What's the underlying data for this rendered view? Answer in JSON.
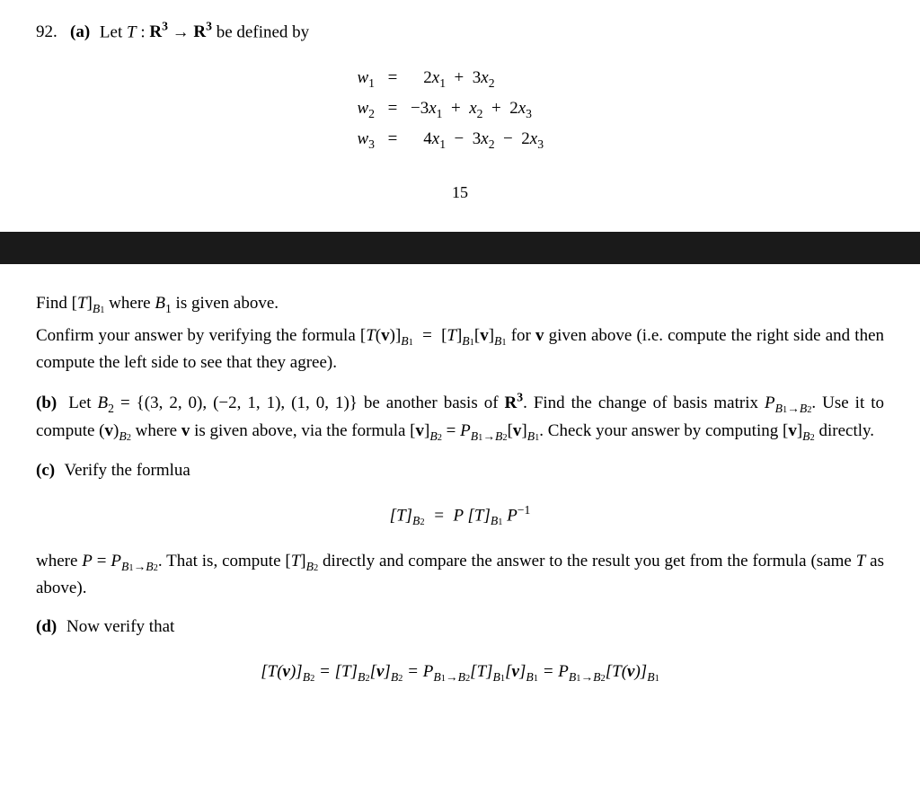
{
  "problem": {
    "number": "92.",
    "part_a_label": "(a)",
    "intro_text": "be defined by",
    "let_text": "Let",
    "T_notation": "T",
    "R3_notation": "R",
    "sup3": "3",
    "arrow": "→"
  },
  "equations": {
    "rows": [
      {
        "lhs": "w",
        "sub": "1",
        "rhs_html": "&nbsp;&nbsp;&nbsp;2<i>x</i><span class='sub'>1</span> &nbsp;+&nbsp; 3<i>x</i><span class='sub'>2</span>"
      },
      {
        "lhs": "w",
        "sub": "2",
        "rhs_html": "&minus;3<i>x</i><span class='sub'>1</span> &nbsp;+&nbsp; <i>x</i><span class='sub'>2</span> &nbsp;+&nbsp; 2<i>x</i><span class='sub'>3</span>"
      },
      {
        "lhs": "w",
        "sub": "3",
        "rhs_html": "&nbsp;&nbsp;&nbsp;4<i>x</i><span class='sub'>1</span> &nbsp;&minus;&nbsp; 3<i>x</i><span class='sub'>2</span> &nbsp;&minus;&nbsp; 2<i>x</i><span class='sub'>3</span>"
      }
    ],
    "eq_sign": "="
  },
  "page_number": "15",
  "body": {
    "find_line": "Find [<i>T</i>]<span class='sub ital'>B</span><span class='sub' style='font-size:0.55em'>1</span> where <i>B</i><span class='sub'>1</span> is given above.",
    "confirm_line": "Confirm your answer by verifying the formula [<i>T</i>(<b>v</b>)]<span class='sub ital'>B</span><span class='sub' style='font-size:0.55em'>1</span> &nbsp;=&nbsp; [<i>T</i>]<span class='sub ital'>B</span><span class='sub' style='font-size:0.55em'>1</span>[<b>v</b>]<span class='sub ital'>B</span><span class='sub' style='font-size:0.55em'>1</span> for <b>v</b> given above (i.e. compute the right side and then compute the left side to see that they agree).",
    "part_b_label": "(b)",
    "part_b_line1": "Let <i>B</i><span class='sub'>2</span> = {(3, 2, 0), (&minus;2, 1, 1), (1, 0, 1)} be another basis of <b>R<span class='sup'>3</span></b>. Find the change of basis matrix <i>P</i><span class='sub ital'>B</span><span class='sub' style='font-size:0.55em'>1</span><span class='sub'>&rarr;</span><span class='sub ital'>B</span><span class='sub' style='font-size:0.55em'>2</span>. Use it to compute (<b>v</b>)<span class='sub ital'>B</span><span class='sub' style='font-size:0.55em'>2</span> where <b>v</b> is given above, via the formula [<b>v</b>]<span class='sub ital'>B</span><span class='sub' style='font-size:0.55em'>2</span> = <i>P</i><span class='sub ital'>B</span><span class='sub' style='font-size:0.55em'>1</span><span class='sub'>&rarr;</span><span class='sub ital'>B</span><span class='sub' style='font-size:0.55em'>2</span>[<b>v</b>]<span class='sub ital'>B</span><span class='sub' style='font-size:0.55em'>1</span>. Check your answer by computing [<b>v</b>]<span class='sub ital'>B</span><span class='sub' style='font-size:0.55em'>2</span> directly.",
    "part_c_label": "(c)",
    "part_c_text": "Verify the formlua",
    "display_formula_1": "[<i>T</i>]<span class='sub ital'>B</span><span class='sub' style='font-size:0.55em'>2</span> &nbsp;=&nbsp; <i>P</i> [<i>T</i>]<span class='sub ital'>B</span><span class='sub' style='font-size:0.55em'>1</span> <i>P</i><span class='sup'>&minus;1</span>",
    "where_line": "where <i>P</i> = <i>P</i><span class='sub ital'>B</span><span class='sub' style='font-size:0.55em'>1</span><span class='sub'>&rarr;</span><span class='sub ital'>B</span><span class='sub' style='font-size:0.55em'>2</span>. That is, compute [<i>T</i>]<span class='sub ital'>B</span><span class='sub' style='font-size:0.55em'>2</span> directly and compare the answer to the result you get from the formula (same <i>T</i> as above).",
    "part_d_label": "(d)",
    "part_d_text": "Now verify that",
    "display_formula_2": "[<i>T</i>(<b>v</b>)]<span class='sub ital'>B</span><span class='sub' style='font-size:0.55em'>2</span> = [<i>T</i>]<span class='sub ital'>B</span><span class='sub' style='font-size:0.55em'>2</span>[<b>v</b>]<span class='sub ital'>B</span><span class='sub' style='font-size:0.55em'>2</span> = <i>P</i><span class='sub ital'>B</span><span class='sub' style='font-size:0.55em'>1</span><span class='sub'>&rarr;</span><span class='sub ital'>B</span><span class='sub' style='font-size:0.55em'>2</span>[<i>T</i>]<span class='sub ital'>B</span><span class='sub' style='font-size:0.55em'>1</span>[<b>v</b>]<span class='sub ital'>B</span><span class='sub' style='font-size:0.55em'>1</span> = <i>P</i><span class='sub ital'>B</span><span class='sub' style='font-size:0.55em'>1</span><span class='sub'>&rarr;</span><span class='sub ital'>B</span><span class='sub' style='font-size:0.55em'>2</span>[<i>T</i>(<b>v</b>)]<span class='sub ital'>B</span><span class='sub norm' style='font-size:0.55em'>1</span>"
  }
}
